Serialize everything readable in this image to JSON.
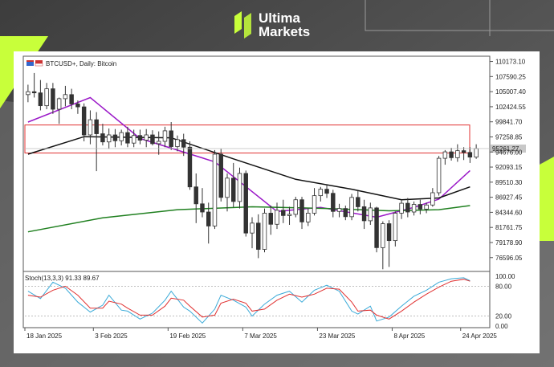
{
  "brand": {
    "line1": "Ultima",
    "line2": "Markets",
    "logo_icon": "ultima-logo-icon",
    "accent": "#c8ff3a"
  },
  "chart_header": {
    "symbol_text": "BTCUSD+, Daily:  Bitcoin",
    "icon": "instrument-flag-icon"
  },
  "colors": {
    "bull": "#ffffff",
    "bear": "#333333",
    "wick": "#333333",
    "ma_short": "#9b19c8",
    "ma_mid": "#111111",
    "ma_long": "#208020",
    "zone": "#e03030",
    "stoch_k": "#3aaad8",
    "stoch_d": "#e03030"
  },
  "chart_data": {
    "type": "candlestick",
    "symbol": "BTCUSD+",
    "timeframe": "Daily",
    "ylim": [
      74500,
      110800
    ],
    "y_ticks": [
      "110173.10",
      "107590.25",
      "105007.40",
      "102424.55",
      "99841.70",
      "97258.85",
      "94676.00",
      "92093.15",
      "89510.30",
      "86927.45",
      "84344.60",
      "81761.75",
      "79178.90",
      "76596.05"
    ],
    "y_tick_values": [
      110173.1,
      107590.25,
      105007.4,
      102424.55,
      99841.7,
      97258.85,
      94676.0,
      92093.15,
      89510.3,
      86927.45,
      84344.6,
      81761.75,
      79178.9,
      76596.05
    ],
    "current_price_label": "95261.27",
    "current_price": 95261,
    "x_labels": [
      {
        "label": "18 Jan 2025",
        "index": 0
      },
      {
        "label": "3 Feb 2025",
        "index": 11
      },
      {
        "label": "19 Feb 2025",
        "index": 23
      },
      {
        "label": "7 Mar 2025",
        "index": 35
      },
      {
        "label": "23 Mar 2025",
        "index": 47
      },
      {
        "label": "8 Apr 2025",
        "index": 59
      },
      {
        "label": "24 Apr 2025",
        "index": 70
      }
    ],
    "resistance_zone": {
      "top": 99300,
      "bottom": 94500,
      "start_index": 0
    },
    "ohlc": [
      [
        104500,
        106200,
        103200,
        105000
      ],
      [
        105000,
        108200,
        104000,
        104800
      ],
      [
        104800,
        107000,
        101800,
        102600
      ],
      [
        102600,
        106500,
        102000,
        105500
      ],
      [
        105500,
        106500,
        101200,
        102000
      ],
      [
        102000,
        104000,
        99500,
        103800
      ],
      [
        103800,
        106000,
        102500,
        104500
      ],
      [
        104500,
        105500,
        102000,
        102900
      ],
      [
        102900,
        103500,
        101200,
        102400
      ],
      [
        102400,
        103000,
        96500,
        97600
      ],
      [
        97600,
        101800,
        96000,
        100200
      ],
      [
        100200,
        101500,
        91400,
        97800
      ],
      [
        97800,
        99500,
        95800,
        96400
      ],
      [
        96400,
        98700,
        95200,
        97600
      ],
      [
        97600,
        98600,
        95500,
        96600
      ],
      [
        96600,
        98500,
        95800,
        98000
      ],
      [
        98000,
        99000,
        95500,
        96200
      ],
      [
        96200,
        98500,
        95500,
        97500
      ],
      [
        97500,
        98500,
        96000,
        96700
      ],
      [
        96700,
        98600,
        95500,
        97600
      ],
      [
        97600,
        98400,
        95800,
        96100
      ],
      [
        96100,
        98200,
        94200,
        96500
      ],
      [
        96500,
        99000,
        95500,
        98300
      ],
      [
        98300,
        99800,
        95000,
        95600
      ],
      [
        95600,
        97500,
        94800,
        96800
      ],
      [
        96800,
        97800,
        94000,
        95500
      ],
      [
        95500,
        96500,
        88200,
        88700
      ],
      [
        88700,
        91000,
        82500,
        85800
      ],
      [
        85800,
        88500,
        83500,
        84400
      ],
      [
        84400,
        86000,
        79000,
        82000
      ],
      [
        82000,
        95000,
        81500,
        94300
      ],
      [
        94300,
        95200,
        86200,
        86900
      ],
      [
        86900,
        91000,
        84500,
        90200
      ],
      [
        90200,
        92800,
        85200,
        86200
      ],
      [
        86200,
        92000,
        85000,
        91000
      ],
      [
        91000,
        91500,
        80200,
        80800
      ],
      [
        80800,
        83500,
        78200,
        82500
      ],
      [
        82500,
        84000,
        76500,
        78000
      ],
      [
        78000,
        85000,
        77500,
        84200
      ],
      [
        84200,
        85500,
        80500,
        82300
      ],
      [
        82300,
        86000,
        81500,
        84700
      ],
      [
        84700,
        86500,
        82500,
        83800
      ],
      [
        83800,
        85300,
        82200,
        84000
      ],
      [
        84000,
        87000,
        83500,
        86500
      ],
      [
        86500,
        87000,
        81500,
        82700
      ],
      [
        82700,
        85000,
        82000,
        84200
      ],
      [
        84200,
        88500,
        83800,
        87200
      ],
      [
        87200,
        88700,
        86200,
        88300
      ],
      [
        88300,
        89000,
        86800,
        87600
      ],
      [
        87600,
        88200,
        83500,
        84500
      ],
      [
        84500,
        85800,
        83500,
        85000
      ],
      [
        85000,
        85500,
        83000,
        83600
      ],
      [
        83600,
        87500,
        83000,
        86900
      ],
      [
        86900,
        88000,
        84500,
        85300
      ],
      [
        85300,
        86500,
        81500,
        82900
      ],
      [
        82900,
        86000,
        82200,
        85100
      ],
      [
        85100,
        85300,
        77500,
        78300
      ],
      [
        78300,
        82800,
        74600,
        82400
      ],
      [
        82400,
        83000,
        75000,
        79500
      ],
      [
        79500,
        84500,
        78500,
        84200
      ],
      [
        84200,
        86500,
        83200,
        85900
      ],
      [
        85900,
        86800,
        83500,
        84400
      ],
      [
        84400,
        86200,
        83800,
        85700
      ],
      [
        85700,
        86500,
        84000,
        84900
      ],
      [
        84900,
        86000,
        84200,
        85600
      ],
      [
        85600,
        88500,
        85300,
        87700
      ],
      [
        87700,
        94000,
        87200,
        93600
      ],
      [
        93600,
        95000,
        92500,
        94700
      ],
      [
        94700,
        95400,
        93200,
        93700
      ],
      [
        93700,
        96000,
        93000,
        94900
      ],
      [
        94900,
        95500,
        93300,
        94600
      ],
      [
        94600,
        95500,
        92800,
        93800
      ],
      [
        93800,
        96000,
        93500,
        95261
      ]
    ],
    "series": [
      {
        "name": "",
        "type": "ma",
        "color": "#9b19c8",
        "points": [
          [
            0,
            99800
          ],
          [
            10,
            104000
          ],
          [
            18,
            97000
          ],
          [
            30,
            93000
          ],
          [
            40,
            84500
          ],
          [
            47,
            85200
          ],
          [
            56,
            83500
          ],
          [
            62,
            85200
          ],
          [
            66,
            86600
          ],
          [
            71,
            91500
          ]
        ]
      },
      {
        "name": "",
        "type": "ma",
        "color": "#111111",
        "points": [
          [
            0,
            94300
          ],
          [
            9,
            97300
          ],
          [
            23,
            97100
          ],
          [
            33,
            93500
          ],
          [
            43,
            90000
          ],
          [
            52,
            88300
          ],
          [
            60,
            86500
          ],
          [
            66,
            86800
          ],
          [
            71,
            88700
          ]
        ]
      },
      {
        "name": "",
        "type": "ma",
        "color": "#208020",
        "points": [
          [
            0,
            81000
          ],
          [
            12,
            83400
          ],
          [
            24,
            84800
          ],
          [
            36,
            85300
          ],
          [
            48,
            85000
          ],
          [
            58,
            84600
          ],
          [
            66,
            84800
          ],
          [
            71,
            85500
          ]
        ]
      }
    ],
    "stochastic": {
      "label": "Stoch(13,3,3) 91.33 89.67",
      "k": 91.33,
      "d": 89.67,
      "levels": [
        "100.00",
        "80.00",
        "20.00",
        "0.00"
      ],
      "level_values": [
        100,
        80,
        20,
        0
      ],
      "k_points": [
        [
          0,
          70
        ],
        [
          2,
          55
        ],
        [
          4,
          88
        ],
        [
          6,
          76
        ],
        [
          8,
          48
        ],
        [
          10,
          28
        ],
        [
          12,
          42
        ],
        [
          13,
          62
        ],
        [
          15,
          32
        ],
        [
          16,
          30
        ],
        [
          18,
          14
        ],
        [
          20,
          26
        ],
        [
          22,
          52
        ],
        [
          23,
          70
        ],
        [
          25,
          38
        ],
        [
          26,
          30
        ],
        [
          28,
          6
        ],
        [
          30,
          34
        ],
        [
          31,
          62
        ],
        [
          33,
          52
        ],
        [
          35,
          38
        ],
        [
          36,
          20
        ],
        [
          38,
          44
        ],
        [
          40,
          62
        ],
        [
          42,
          70
        ],
        [
          44,
          48
        ],
        [
          46,
          72
        ],
        [
          48,
          82
        ],
        [
          50,
          70
        ],
        [
          52,
          30
        ],
        [
          53,
          24
        ],
        [
          55,
          40
        ],
        [
          56,
          10
        ],
        [
          58,
          18
        ],
        [
          60,
          40
        ],
        [
          62,
          60
        ],
        [
          64,
          72
        ],
        [
          66,
          88
        ],
        [
          68,
          95
        ],
        [
          70,
          97
        ],
        [
          71,
          91
        ]
      ],
      "d_points": [
        [
          0,
          62
        ],
        [
          2,
          58
        ],
        [
          4,
          72
        ],
        [
          6,
          80
        ],
        [
          8,
          62
        ],
        [
          10,
          36
        ],
        [
          12,
          36
        ],
        [
          13,
          50
        ],
        [
          15,
          44
        ],
        [
          16,
          36
        ],
        [
          18,
          22
        ],
        [
          20,
          22
        ],
        [
          22,
          40
        ],
        [
          23,
          56
        ],
        [
          25,
          52
        ],
        [
          26,
          40
        ],
        [
          28,
          18
        ],
        [
          30,
          22
        ],
        [
          31,
          46
        ],
        [
          33,
          54
        ],
        [
          35,
          46
        ],
        [
          36,
          30
        ],
        [
          38,
          34
        ],
        [
          40,
          52
        ],
        [
          42,
          64
        ],
        [
          44,
          58
        ],
        [
          46,
          64
        ],
        [
          48,
          76
        ],
        [
          50,
          74
        ],
        [
          52,
          48
        ],
        [
          53,
          30
        ],
        [
          55,
          32
        ],
        [
          56,
          22
        ],
        [
          58,
          14
        ],
        [
          60,
          30
        ],
        [
          62,
          48
        ],
        [
          64,
          64
        ],
        [
          66,
          78
        ],
        [
          68,
          90
        ],
        [
          70,
          94
        ],
        [
          71,
          90
        ]
      ]
    }
  }
}
